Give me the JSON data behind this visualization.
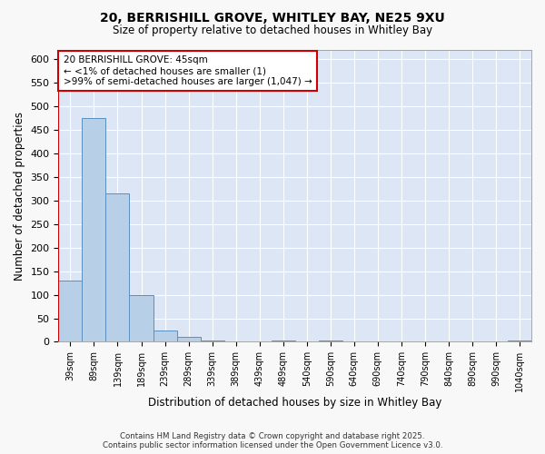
{
  "title1": "20, BERRISHILL GROVE, WHITLEY BAY, NE25 9XU",
  "title2": "Size of property relative to detached houses in Whitley Bay",
  "xlabel": "Distribution of detached houses by size in Whitley Bay",
  "ylabel": "Number of detached properties",
  "bar_values": [
    130,
    475,
    315,
    100,
    25,
    10,
    3,
    1,
    1,
    2,
    1,
    2,
    1,
    1,
    1,
    1,
    1,
    1,
    1,
    3
  ],
  "bar_labels": [
    "39sqm",
    "89sqm",
    "139sqm",
    "189sqm",
    "239sqm",
    "289sqm",
    "339sqm",
    "389sqm",
    "439sqm",
    "489sqm",
    "540sqm",
    "590sqm",
    "640sqm",
    "690sqm",
    "740sqm",
    "790sqm",
    "840sqm",
    "890sqm",
    "990sqm",
    "1040sqm"
  ],
  "bar_color": "#b8cfe8",
  "bar_edge_color": "#5a8fc0",
  "bar_width": 1.0,
  "ylim": [
    0,
    620
  ],
  "yticks": [
    0,
    50,
    100,
    150,
    200,
    250,
    300,
    350,
    400,
    450,
    500,
    550,
    600
  ],
  "vline_color": "#cc0000",
  "annotation_text": "20 BERRISHILL GROVE: 45sqm\n← <1% of detached houses are smaller (1)\n>99% of semi-detached houses are larger (1,047) →",
  "annotation_box_color": "#ffffff",
  "annotation_box_edge": "#cc0000",
  "fig_bg_color": "#f8f8f8",
  "bg_color": "#dce6f5",
  "grid_color": "#ffffff",
  "footer1": "Contains HM Land Registry data © Crown copyright and database right 2025.",
  "footer2": "Contains public sector information licensed under the Open Government Licence v3.0."
}
